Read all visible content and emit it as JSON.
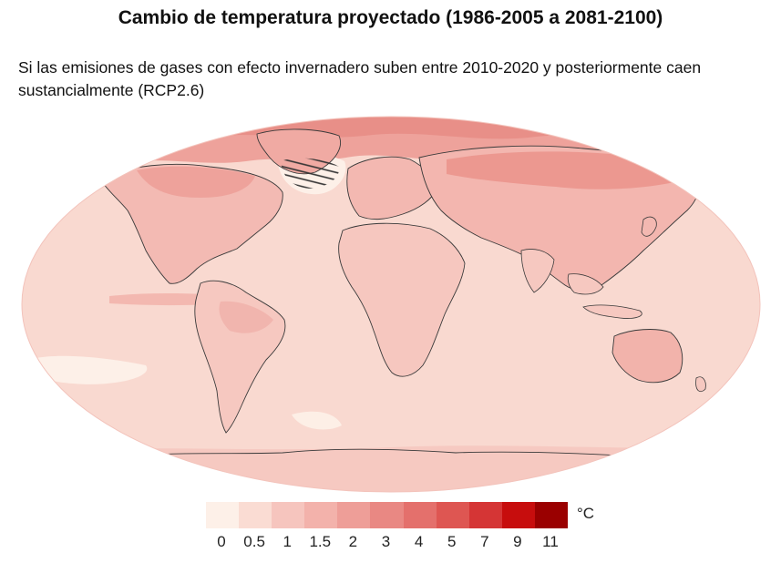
{
  "title": "Cambio de temperatura proyectado (1986-2005 a 2081-2100)",
  "subtitle": "Si las emisiones de gases con efecto invernadero suben entre 2010-2020 y posteriormente caen sustancialmente (RCP2.6)",
  "map": {
    "projection": "Robinson",
    "fill_colors": {
      "ocean_base": "#f9d9d0",
      "land_base": "#f6cec6",
      "warm_high_latitude": "#eea29b",
      "arctic": "#e88f88",
      "cool_patch": "#fdf0e8",
      "outline": "#3a3a3a"
    },
    "hatched_region": "North Atlantic south of Greenland"
  },
  "legend": {
    "unit": "°C",
    "ticks": [
      "0",
      "0.5",
      "1",
      "1.5",
      "2",
      "3",
      "4",
      "5",
      "7",
      "9",
      "11"
    ],
    "colors": [
      "#fdf0e8",
      "#fadcd3",
      "#f6c5be",
      "#f3b2ab",
      "#ee9e98",
      "#e98883",
      "#e4706c",
      "#de5652",
      "#d53535",
      "#c70d0d",
      "#9a0000"
    ]
  }
}
